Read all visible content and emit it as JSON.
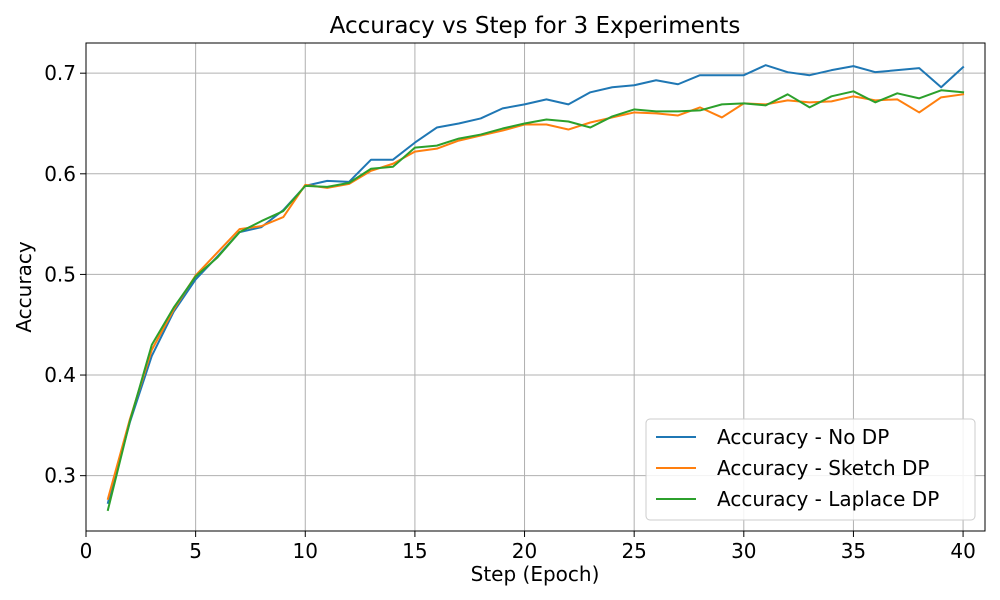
{
  "chart_data": {
    "type": "line",
    "title": "Accuracy vs Step for 3 Experiments",
    "xlabel": "Step (Epoch)",
    "ylabel": "Accuracy",
    "xlim": [
      0,
      41
    ],
    "ylim": [
      0.245,
      0.73
    ],
    "xticks": [
      0,
      5,
      10,
      15,
      20,
      25,
      30,
      35,
      40
    ],
    "yticks": [
      0.3,
      0.4,
      0.5,
      0.6,
      0.7
    ],
    "xtick_labels": [
      "0",
      "5",
      "10",
      "15",
      "20",
      "25",
      "30",
      "35",
      "40"
    ],
    "ytick_labels": [
      "0.3",
      "0.4",
      "0.5",
      "0.6",
      "0.7"
    ],
    "grid": true,
    "legend_position": "lower-right",
    "x": [
      1,
      2,
      3,
      4,
      5,
      6,
      7,
      8,
      9,
      10,
      11,
      12,
      13,
      14,
      15,
      16,
      17,
      18,
      19,
      20,
      21,
      22,
      23,
      24,
      25,
      26,
      27,
      28,
      29,
      30,
      31,
      32,
      33,
      34,
      35,
      36,
      37,
      38,
      39,
      40
    ],
    "series": [
      {
        "name": "Accuracy - No DP",
        "color": "#1f77b4",
        "values": [
          0.273,
          0.353,
          0.419,
          0.463,
          0.495,
          0.518,
          0.542,
          0.547,
          0.564,
          0.588,
          0.593,
          0.592,
          0.614,
          0.614,
          0.631,
          0.646,
          0.65,
          0.655,
          0.665,
          0.669,
          0.674,
          0.669,
          0.681,
          0.686,
          0.688,
          0.693,
          0.689,
          0.698,
          0.698,
          0.698,
          0.708,
          0.701,
          0.698,
          0.703,
          0.707,
          0.701,
          0.703,
          0.705,
          0.686,
          0.706
        ]
      },
      {
        "name": "Accuracy - Sketch DP",
        "color": "#ff7f0e",
        "values": [
          0.277,
          0.356,
          0.425,
          0.465,
          0.499,
          0.522,
          0.545,
          0.548,
          0.557,
          0.589,
          0.586,
          0.59,
          0.603,
          0.61,
          0.622,
          0.625,
          0.633,
          0.638,
          0.643,
          0.649,
          0.649,
          0.644,
          0.651,
          0.656,
          0.661,
          0.66,
          0.658,
          0.666,
          0.656,
          0.67,
          0.669,
          0.673,
          0.671,
          0.672,
          0.677,
          0.673,
          0.674,
          0.661,
          0.676,
          0.679
        ]
      },
      {
        "name": "Accuracy - Laplace DP",
        "color": "#2ca02c",
        "values": [
          0.266,
          0.354,
          0.43,
          0.467,
          0.498,
          0.517,
          0.542,
          0.553,
          0.563,
          0.588,
          0.587,
          0.591,
          0.605,
          0.607,
          0.626,
          0.628,
          0.635,
          0.639,
          0.645,
          0.65,
          0.654,
          0.652,
          0.646,
          0.657,
          0.664,
          0.662,
          0.662,
          0.663,
          0.669,
          0.67,
          0.668,
          0.679,
          0.666,
          0.677,
          0.682,
          0.671,
          0.68,
          0.675,
          0.683,
          0.681
        ]
      }
    ]
  }
}
